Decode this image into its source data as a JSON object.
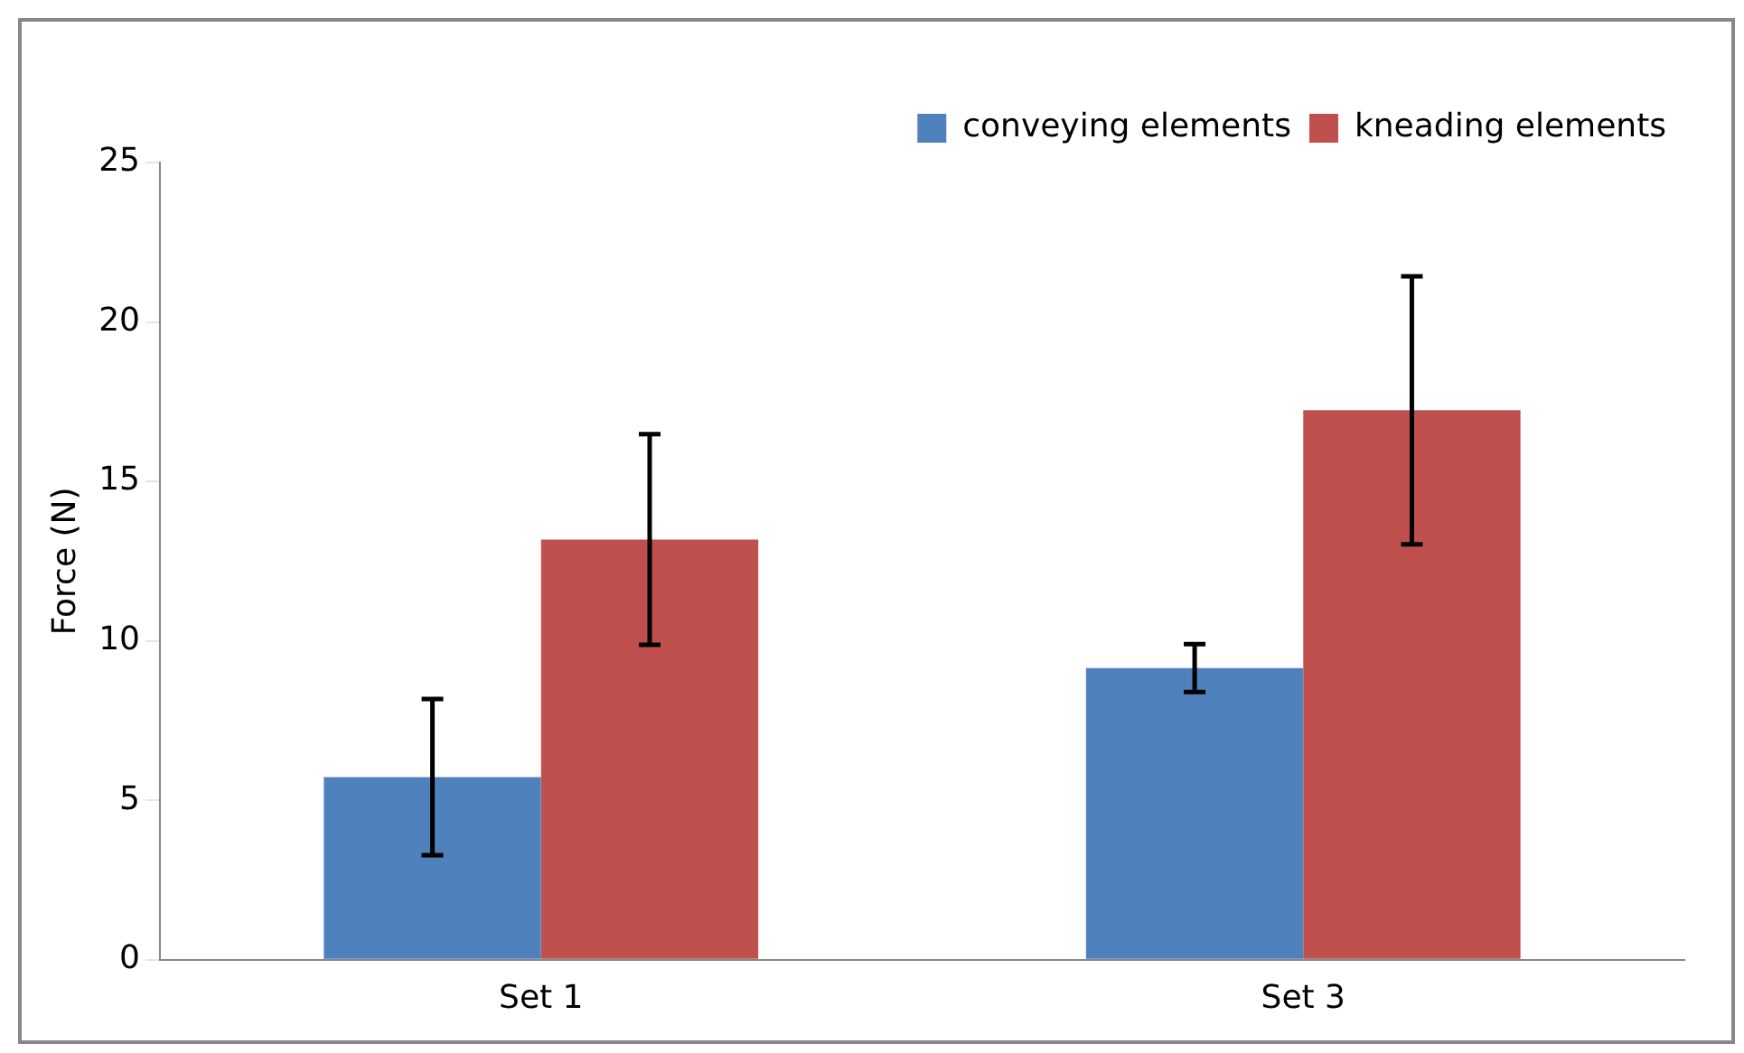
{
  "chart_data": {
    "type": "bar",
    "ylabel": "Force (N)",
    "categories": [
      "Set 1",
      "Set 3"
    ],
    "series": [
      {
        "name": "conveying elements",
        "color": "#4f81bd",
        "values": [
          5.73,
          9.15
        ],
        "errors": [
          2.45,
          0.75
        ]
      },
      {
        "name": "kneading elements",
        "color": "#c0504d",
        "values": [
          13.18,
          17.23
        ],
        "errors": [
          3.3,
          4.2
        ]
      }
    ],
    "ylim": [
      0,
      25
    ],
    "yticks": [
      0,
      5,
      10,
      15,
      20,
      25
    ],
    "grid": false,
    "legend": "top right"
  }
}
